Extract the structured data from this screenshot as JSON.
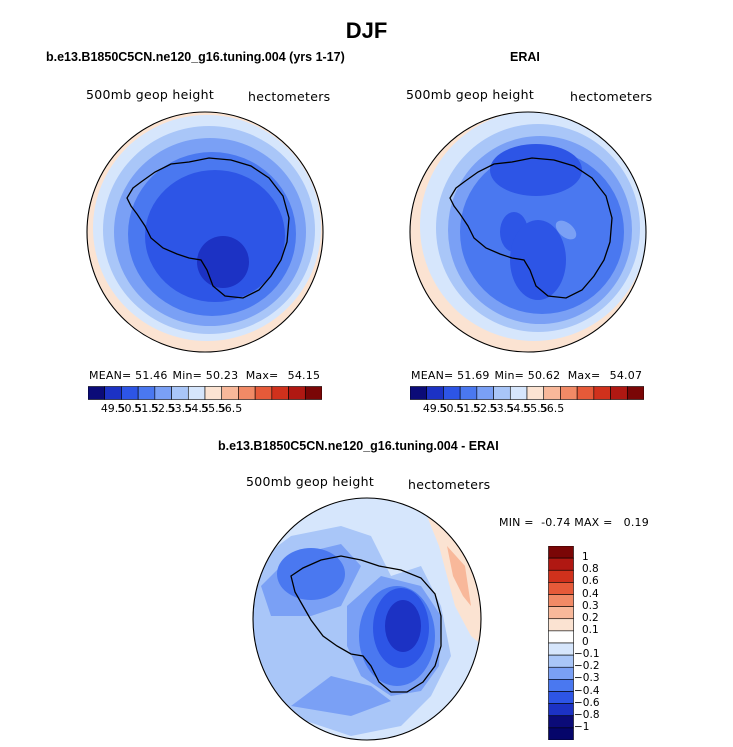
{
  "figure_title": "DJF",
  "chart_data": [
    {
      "type": "heatmap",
      "title": "b.e13.B1850C5CN.ne120_g16.tuning.004 (yrs 1-17)",
      "variable_label": "500mb geop height",
      "units_label": "hectometers",
      "stats": {
        "mean_label": "MEAN=",
        "mean": "51.46",
        "min_label": "Min=",
        "min": "50.23",
        "max_label": "Max=",
        "max": "54.15"
      },
      "colorbar": {
        "orientation": "horizontal",
        "ticks": [
          "49.5",
          "50.5",
          "51.5",
          "52.5",
          "53.5",
          "54.5",
          "55.5",
          "56.5"
        ],
        "colors": [
          "#0b0b78",
          "#1c32c4",
          "#2d55e6",
          "#4a78f0",
          "#7aa0f5",
          "#a9c6f8",
          "#d6e6fc",
          "#fbe3d2",
          "#f8b89a",
          "#f18a66",
          "#e65a39",
          "#d0311c",
          "#b01812",
          "#7a0606"
        ]
      }
    },
    {
      "type": "heatmap",
      "title": "ERAI",
      "variable_label": "500mb geop height",
      "units_label": "hectometers",
      "stats": {
        "mean_label": "MEAN=",
        "mean": "51.69",
        "min_label": "Min=",
        "min": "50.62",
        "max_label": "Max=",
        "max": "54.07"
      },
      "colorbar": {
        "orientation": "horizontal",
        "ticks": [
          "49.5",
          "50.5",
          "51.5",
          "52.5",
          "53.5",
          "54.5",
          "55.5",
          "56.5"
        ],
        "colors": [
          "#0b0b78",
          "#1c32c4",
          "#2d55e6",
          "#4a78f0",
          "#7aa0f5",
          "#a9c6f8",
          "#d6e6fc",
          "#fbe3d2",
          "#f8b89a",
          "#f18a66",
          "#e65a39",
          "#d0311c",
          "#b01812",
          "#7a0606"
        ]
      }
    },
    {
      "type": "heatmap",
      "title": "b.e13.B1850C5CN.ne120_g16.tuning.004 - ERAI",
      "variable_label": "500mb geop height",
      "units_label": "hectometers",
      "stats_text": {
        "min_label": "MIN =",
        "min": "-0.74",
        "max_label": "MAX =",
        "max": "0.19"
      },
      "colorbar": {
        "orientation": "vertical",
        "ticks": [
          "1",
          "0.8",
          "0.6",
          "0.4",
          "0.3",
          "0.2",
          "0.1",
          "0",
          "-0.1",
          "-0.2",
          "-0.3",
          "-0.4",
          "-0.6",
          "-0.8",
          "-1"
        ],
        "colors": [
          "#7a0606",
          "#b01812",
          "#d0311c",
          "#e65a39",
          "#f18a66",
          "#f8b89a",
          "#fbe3d2",
          "#ffffff",
          "#d6e6fc",
          "#a9c6f8",
          "#7aa0f5",
          "#4a78f0",
          "#2d55e6",
          "#1c32c4",
          "#0b0b78",
          "#05056a"
        ]
      }
    }
  ]
}
